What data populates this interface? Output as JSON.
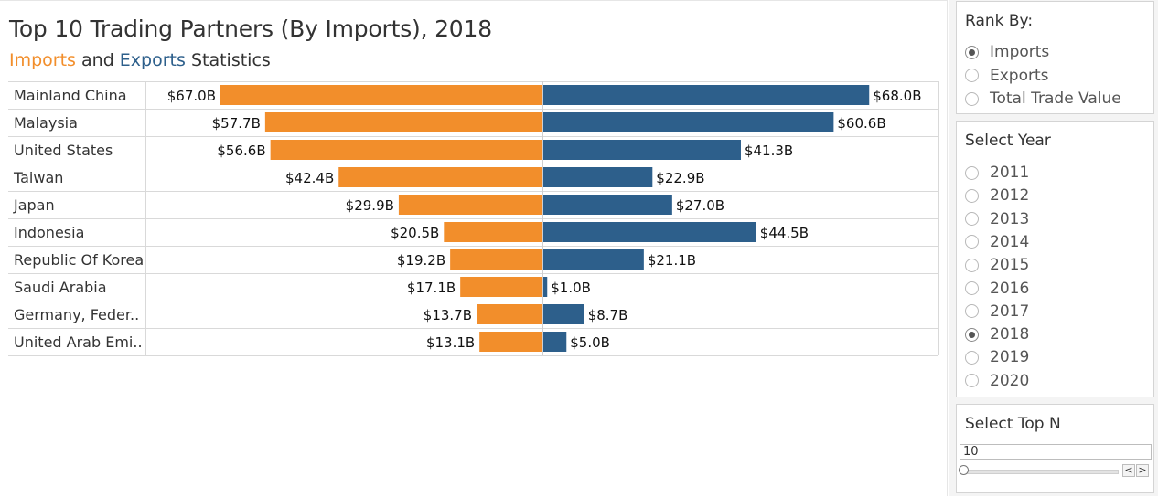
{
  "chart_data": {
    "type": "bar",
    "orientation": "horizontal-butterfly",
    "title": "Top 10 Trading Partners (By Imports), 2018",
    "subtitle": {
      "imports_word": "Imports",
      "and_word": " and ",
      "exports_word": "Exports",
      "tail_word": " Statistics"
    },
    "categories": [
      "Mainland China",
      "Malaysia",
      "United States",
      "Taiwan",
      "Japan",
      "Indonesia",
      "Republic Of Korea",
      "Saudi Arabia",
      "Germany, Feder..",
      "United Arab Emi.."
    ],
    "series": [
      {
        "name": "Imports",
        "color": "#f28e2b",
        "values": [
          67.0,
          57.7,
          56.6,
          42.4,
          29.9,
          20.5,
          19.2,
          17.1,
          13.7,
          13.1
        ],
        "labels": [
          "$67.0B",
          "$57.7B",
          "$56.6B",
          "$42.4B",
          "$29.9B",
          "$20.5B",
          "$19.2B",
          "$17.1B",
          "$13.7B",
          "$13.1B"
        ]
      },
      {
        "name": "Exports",
        "color": "#2d5f8b",
        "values": [
          68.0,
          60.6,
          41.3,
          22.9,
          27.0,
          44.5,
          21.1,
          1.0,
          8.7,
          5.0
        ],
        "labels": [
          "$68.0B",
          "$60.6B",
          "$41.3B",
          "$22.9B",
          "$27.0B",
          "$44.5B",
          "$21.1B",
          "$1.0B",
          "$8.7B",
          "$5.0B"
        ]
      }
    ],
    "xlim_imports": [
      0,
      80
    ],
    "xlim_exports": [
      0,
      80
    ],
    "grid": "row-lines",
    "legend": "subtitle"
  },
  "filters": {
    "rank_by": {
      "title": "Rank By:",
      "options": [
        "Imports",
        "Exports",
        "Total Trade Value"
      ],
      "selected": "Imports"
    },
    "select_year": {
      "title": "Select Year",
      "options": [
        "2011",
        "2012",
        "2013",
        "2014",
        "2015",
        "2016",
        "2017",
        "2018",
        "2019",
        "2020"
      ],
      "selected": "2018"
    },
    "select_top_n": {
      "title": "Select Top N",
      "value": "10",
      "slider_fraction": 0.0,
      "prev_glyph": "<",
      "next_glyph": ">"
    }
  }
}
